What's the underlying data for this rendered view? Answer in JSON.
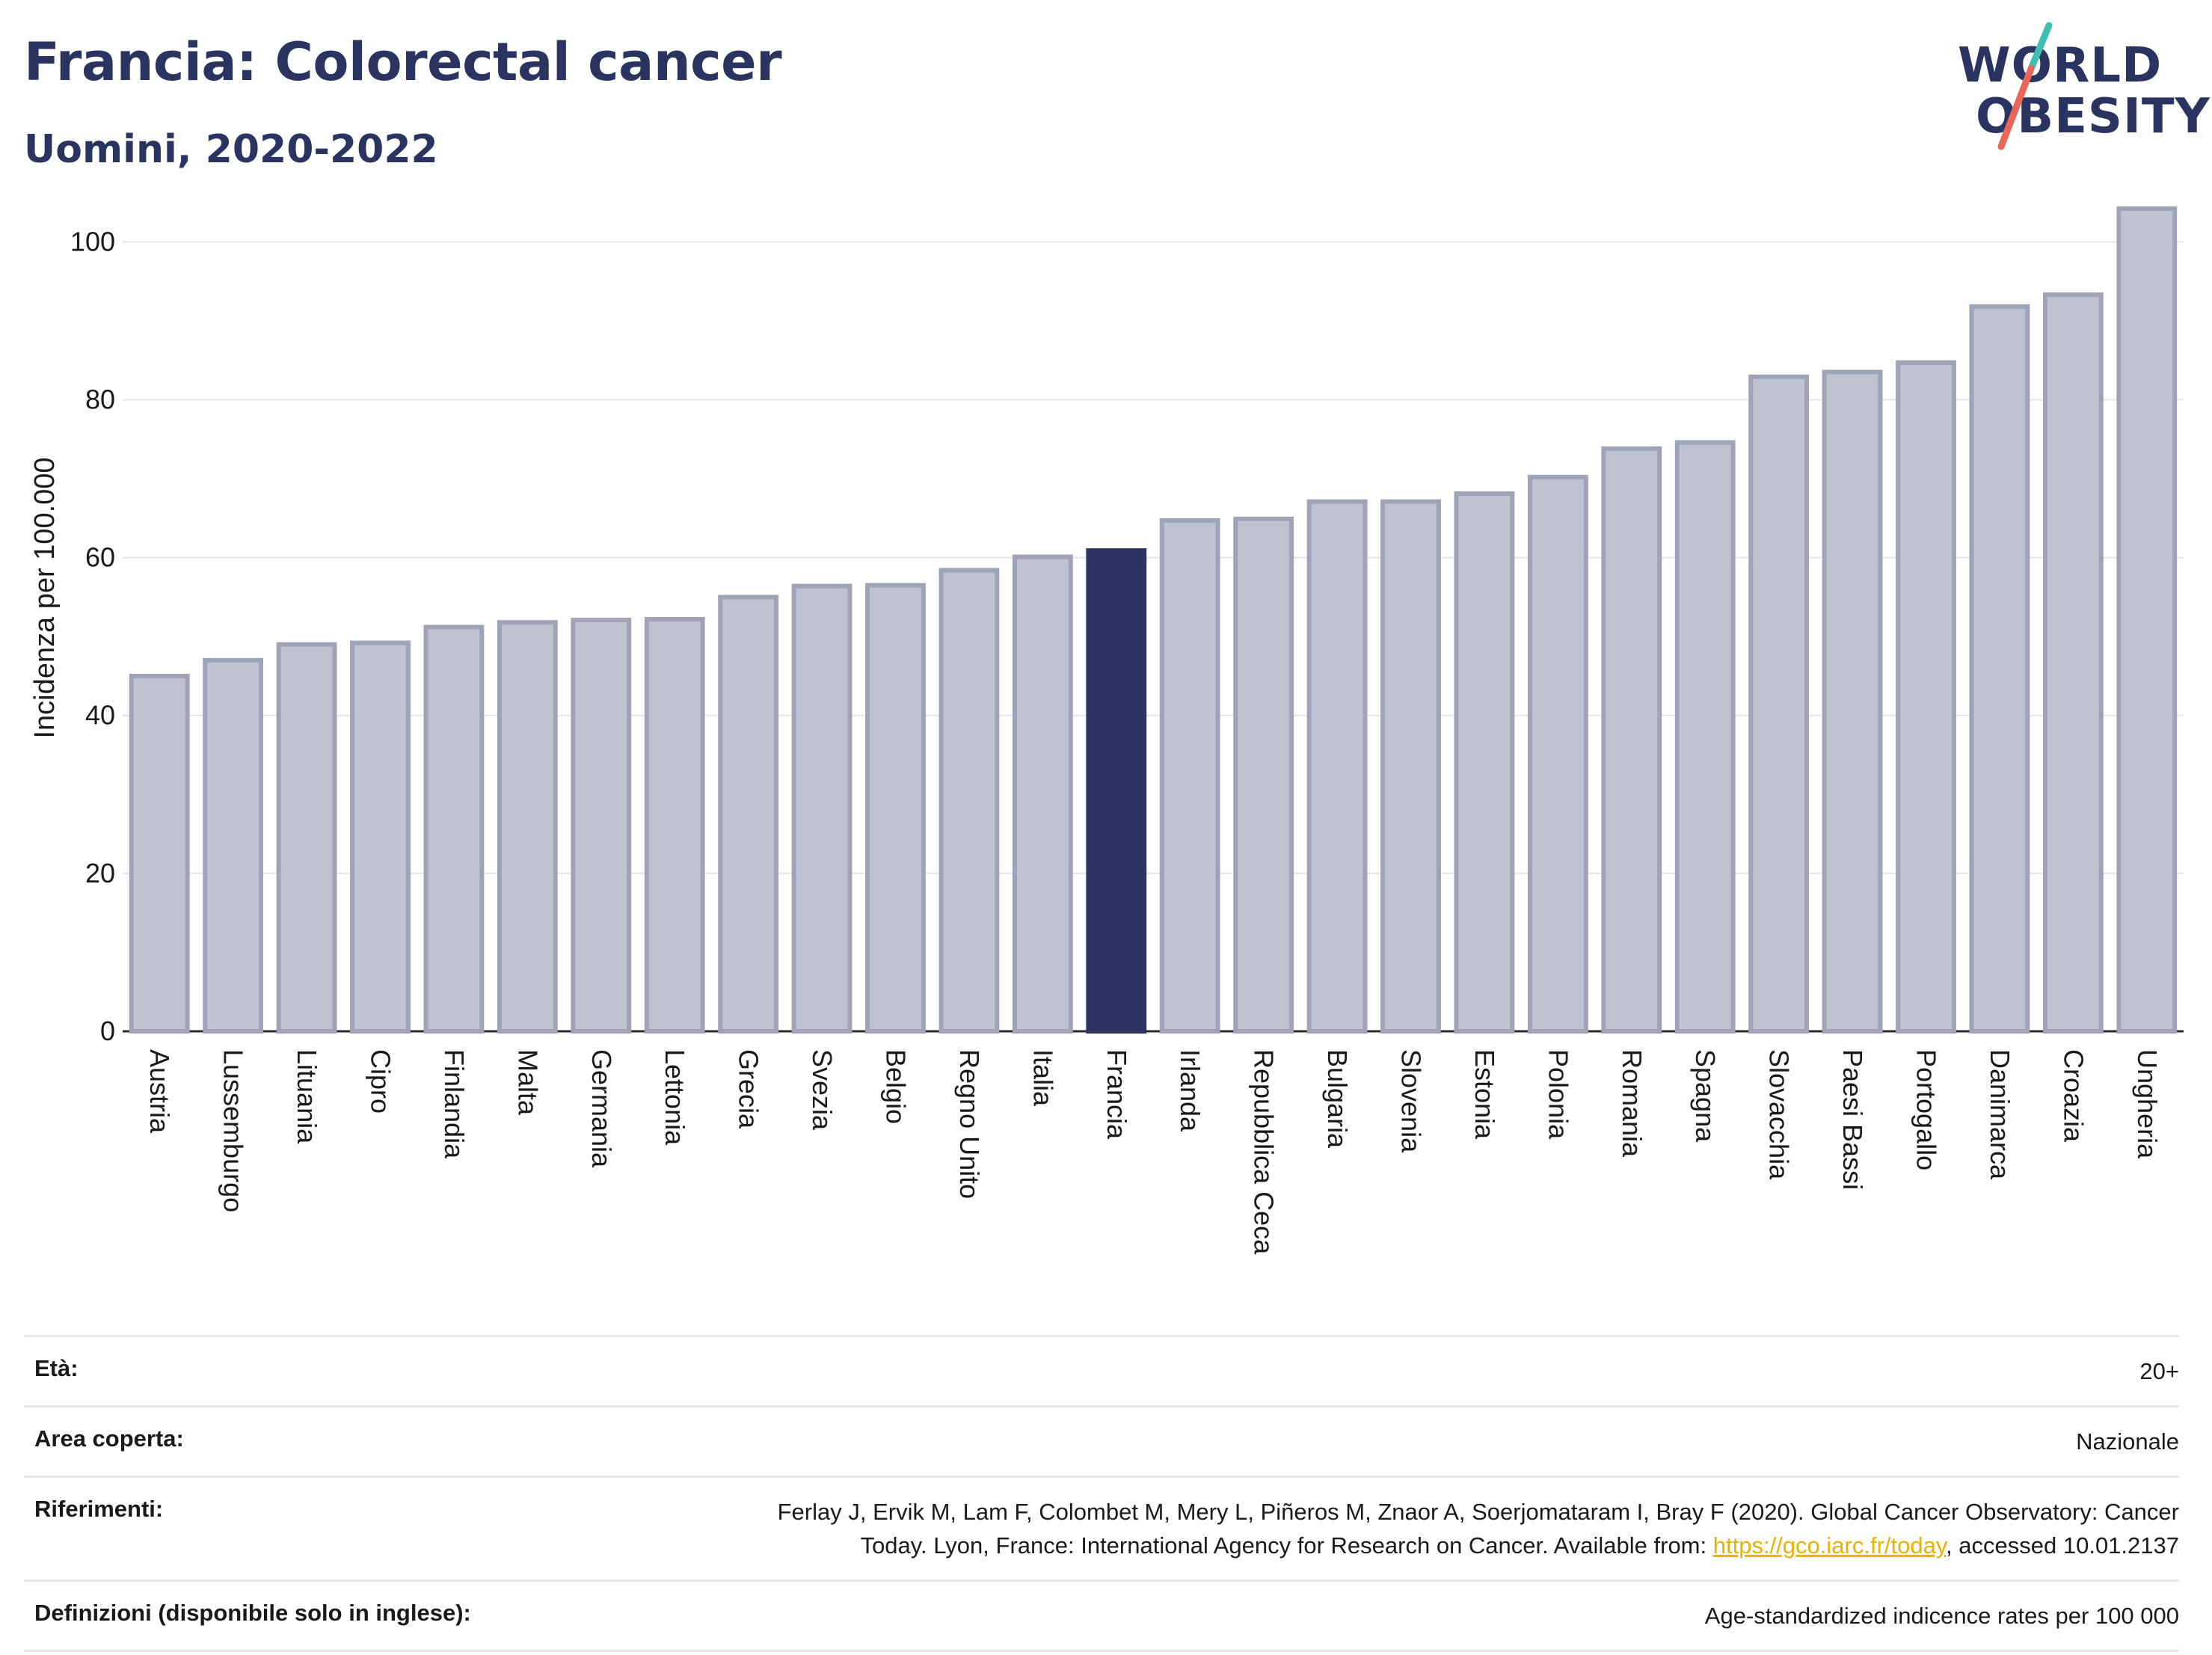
{
  "header": {
    "title": "Francia: Colorectal cancer",
    "subtitle": "Uomini, 2020-2022",
    "logo_line1": "WORLD",
    "logo_line2": "OBESITY"
  },
  "colors": {
    "highlight_bar": "#2c3561",
    "default_bar_fill": "#bfc2cf",
    "default_bar_stroke": "#9ea3b8",
    "title": "#2a3460",
    "link": "#e8b200",
    "logo_slash_teal": "#3fbfb3",
    "logo_slash_coral": "#e8675a"
  },
  "chart_data": {
    "type": "bar",
    "ylabel": "Incidenza per 100.000",
    "xlabel": "",
    "ylim": [
      0,
      106
    ],
    "yticks": [
      0,
      20,
      40,
      60,
      80,
      100
    ],
    "grid": true,
    "legend": "none",
    "highlight": "Francia",
    "categories": [
      "Austria",
      "Lussemburgo",
      "Lituania",
      "Cipro",
      "Finlandia",
      "Malta",
      "Germania",
      "Lettonia",
      "Grecia",
      "Svezia",
      "Belgio",
      "Regno Unito",
      "Italia",
      "Francia",
      "Irlanda",
      "Repubblica Ceca",
      "Bulgaria",
      "Slovenia",
      "Estonia",
      "Polonia",
      "Romania",
      "Spagna",
      "Slovacchia",
      "Paesi Bassi",
      "Portogallo",
      "Danimarca",
      "Croazia",
      "Ungheria"
    ],
    "values": [
      45.0,
      47.0,
      49.0,
      49.2,
      51.2,
      51.8,
      52.1,
      52.2,
      55.0,
      56.4,
      56.5,
      58.4,
      60.1,
      60.9,
      64.7,
      64.9,
      67.1,
      67.1,
      68.1,
      70.2,
      73.8,
      74.6,
      82.9,
      83.5,
      84.7,
      91.8,
      93.3,
      104.2
    ]
  },
  "info": {
    "age_label": "Età:",
    "age_value": "20+",
    "area_label": "Area coperta:",
    "area_value": "Nazionale",
    "refs_label": "Riferimenti:",
    "refs_line1": "Ferlay J, Ervik M, Lam F, Colombet M, Mery L, Piñeros M, Znaor A, Soerjomataram I, Bray F (2020). Global Cancer Observatory: Cancer",
    "refs_line2_pre": "Today. Lyon, France: International Agency for Research on Cancer. Available from: ",
    "refs_link": "https://gco.iarc.fr/today",
    "refs_line2_post": ", accessed 10.01.2137",
    "defs_label": "Definizioni (disponibile solo in inglese):",
    "defs_value": "Age-standardized indicence rates per 100 000"
  }
}
